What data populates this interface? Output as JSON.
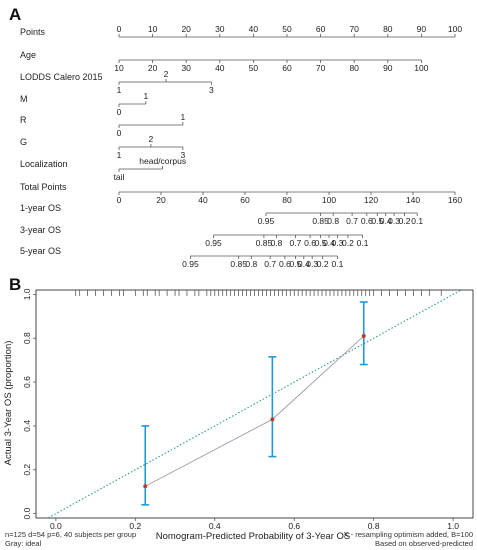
{
  "chart_data": [
    {
      "type": "nomogram",
      "panel_label": "A",
      "rows": [
        {
          "label": "Points",
          "scale_min": 0,
          "scale_max": 100,
          "ticks": [
            {
              "v": 0,
              "t": "0",
              "pos": "above"
            },
            {
              "v": 10,
              "t": "10",
              "pos": "above"
            },
            {
              "v": 20,
              "t": "20",
              "pos": "above"
            },
            {
              "v": 30,
              "t": "30",
              "pos": "above"
            },
            {
              "v": 40,
              "t": "40",
              "pos": "above"
            },
            {
              "v": 50,
              "t": "50",
              "pos": "above"
            },
            {
              "v": 60,
              "t": "60",
              "pos": "above"
            },
            {
              "v": 70,
              "t": "70",
              "pos": "above"
            },
            {
              "v": 80,
              "t": "80",
              "pos": "above"
            },
            {
              "v": 90,
              "t": "90",
              "pos": "above"
            },
            {
              "v": 100,
              "t": "100",
              "pos": "above"
            }
          ]
        },
        {
          "label": "Age",
          "scale_min": 0,
          "scale_max": 100,
          "ticks": [
            {
              "v": 0,
              "t": "10",
              "pos": "below"
            },
            {
              "v": 10,
              "t": "20",
              "pos": "below"
            },
            {
              "v": 20,
              "t": "30",
              "pos": "below"
            },
            {
              "v": 30,
              "t": "40",
              "pos": "below"
            },
            {
              "v": 40,
              "t": "50",
              "pos": "below"
            },
            {
              "v": 50,
              "t": "60",
              "pos": "below"
            },
            {
              "v": 60,
              "t": "70",
              "pos": "below"
            },
            {
              "v": 70,
              "t": "80",
              "pos": "below"
            },
            {
              "v": 80,
              "t": "90",
              "pos": "below"
            },
            {
              "v": 90,
              "t": "100",
              "pos": "below"
            }
          ]
        },
        {
          "label": "LODDS Calero 2015",
          "scale_min": 0,
          "scale_max": 100,
          "ticks": [
            {
              "v": 0,
              "t": "1",
              "pos": "below"
            },
            {
              "v": 14,
              "t": "2",
              "pos": "above"
            },
            {
              "v": 27.5,
              "t": "3",
              "pos": "below"
            }
          ]
        },
        {
          "label": "M",
          "scale_min": 0,
          "scale_max": 100,
          "ticks": [
            {
              "v": 0,
              "t": "0",
              "pos": "below"
            },
            {
              "v": 8,
              "t": "1",
              "pos": "above"
            }
          ]
        },
        {
          "label": "R",
          "scale_min": 0,
          "scale_max": 100,
          "ticks": [
            {
              "v": 0,
              "t": "0",
              "pos": "below"
            },
            {
              "v": 19,
              "t": "1",
              "pos": "above"
            }
          ]
        },
        {
          "label": "G",
          "scale_min": 0,
          "scale_max": 100,
          "ticks": [
            {
              "v": 0,
              "t": "1",
              "pos": "below"
            },
            {
              "v": 9.5,
              "t": "2",
              "pos": "above"
            },
            {
              "v": 19,
              "t": "3",
              "pos": "below"
            }
          ]
        },
        {
          "label": "Localization",
          "scale_min": 0,
          "scale_max": 100,
          "ticks": [
            {
              "v": 0,
              "t": "tail",
              "pos": "below"
            },
            {
              "v": 13,
              "t": "head/corpus",
              "pos": "above"
            }
          ]
        },
        {
          "label": "Total Points",
          "scale_min": 0,
          "scale_max": 160,
          "ticks": [
            {
              "v": 0,
              "t": "0",
              "pos": "below"
            },
            {
              "v": 20,
              "t": "20",
              "pos": "below"
            },
            {
              "v": 40,
              "t": "40",
              "pos": "below"
            },
            {
              "v": 60,
              "t": "60",
              "pos": "below"
            },
            {
              "v": 80,
              "t": "80",
              "pos": "below"
            },
            {
              "v": 100,
              "t": "100",
              "pos": "below"
            },
            {
              "v": 120,
              "t": "120",
              "pos": "below"
            },
            {
              "v": 140,
              "t": "140",
              "pos": "below"
            },
            {
              "v": 160,
              "t": "160",
              "pos": "below"
            }
          ]
        },
        {
          "label": "1-year OS",
          "scale_min": 0,
          "scale_max": 160,
          "ticks": [
            {
              "v": 70,
              "t": "0.95",
              "pos": "below"
            },
            {
              "v": 96,
              "t": "0.85",
              "pos": "below"
            },
            {
              "v": 102,
              "t": "0.8",
              "pos": "below"
            },
            {
              "v": 111,
              "t": "0.7",
              "pos": "below"
            },
            {
              "v": 118,
              "t": "0.6",
              "pos": "below"
            },
            {
              "v": 123,
              "t": "0.5",
              "pos": "below"
            },
            {
              "v": 127,
              "t": "0.4",
              "pos": "below"
            },
            {
              "v": 131,
              "t": "0.3",
              "pos": "below"
            },
            {
              "v": 136,
              "t": "0.2",
              "pos": "below"
            },
            {
              "v": 142,
              "t": "0.1",
              "pos": "below"
            }
          ]
        },
        {
          "label": "3-year OS",
          "scale_min": 0,
          "scale_max": 160,
          "ticks": [
            {
              "v": 45,
              "t": "0.95",
              "pos": "below"
            },
            {
              "v": 69,
              "t": "0.85",
              "pos": "below"
            },
            {
              "v": 75,
              "t": "0.8",
              "pos": "below"
            },
            {
              "v": 84,
              "t": "0.7",
              "pos": "below"
            },
            {
              "v": 91,
              "t": "0.6",
              "pos": "below"
            },
            {
              "v": 96,
              "t": "0.5",
              "pos": "below"
            },
            {
              "v": 100,
              "t": "0.4",
              "pos": "below"
            },
            {
              "v": 104,
              "t": "0.3",
              "pos": "below"
            },
            {
              "v": 109,
              "t": "0.2",
              "pos": "below"
            },
            {
              "v": 116,
              "t": "0.1",
              "pos": "below"
            }
          ]
        },
        {
          "label": "5-year OS",
          "scale_min": 0,
          "scale_max": 160,
          "ticks": [
            {
              "v": 34,
              "t": "0.95",
              "pos": "below"
            },
            {
              "v": 57,
              "t": "0.85",
              "pos": "below"
            },
            {
              "v": 63,
              "t": "0.8",
              "pos": "below"
            },
            {
              "v": 72,
              "t": "0.7",
              "pos": "below"
            },
            {
              "v": 79,
              "t": "0.6",
              "pos": "below"
            },
            {
              "v": 84,
              "t": "0.5",
              "pos": "below"
            },
            {
              "v": 88,
              "t": "0.4",
              "pos": "below"
            },
            {
              "v": 92,
              "t": "0.3",
              "pos": "below"
            },
            {
              "v": 97,
              "t": "0.2",
              "pos": "below"
            },
            {
              "v": 104,
              "t": "0.1",
              "pos": "below"
            }
          ]
        }
      ]
    },
    {
      "type": "scatter",
      "panel_label": "B",
      "xlabel": "Nomogram-Predicted Probability of 3-Year OS",
      "ylabel": "Actual 3-Year OS (proportion)",
      "xlim": [
        -0.05,
        1.05
      ],
      "ylim": [
        -0.02,
        1.02
      ],
      "x_ticks": [
        "0.0",
        "0.2",
        "0.4",
        "0.6",
        "0.8",
        "1.0"
      ],
      "y_ticks": [
        "0.0",
        "0.2",
        "0.4",
        "0.6",
        "0.8",
        "1.0"
      ],
      "points": [
        {
          "x": 0.225,
          "y": 0.125,
          "lo": 0.04,
          "hi": 0.4
        },
        {
          "x": 0.545,
          "y": 0.43,
          "lo": 0.26,
          "hi": 0.715
        },
        {
          "x": 0.775,
          "y": 0.81,
          "lo": 0.68,
          "hi": 0.965
        }
      ],
      "ideal_line": [
        [
          -0.05,
          -0.05
        ],
        [
          1.05,
          1.05
        ]
      ],
      "rug_x": [
        0.05,
        0.06,
        0.08,
        0.1,
        0.12,
        0.14,
        0.16,
        0.17,
        0.2,
        0.22,
        0.23,
        0.25,
        0.26,
        0.28,
        0.3,
        0.31,
        0.33,
        0.35,
        0.36,
        0.38,
        0.39,
        0.4,
        0.41,
        0.42,
        0.43,
        0.44,
        0.45,
        0.46,
        0.47,
        0.48,
        0.49,
        0.5,
        0.51,
        0.52,
        0.53,
        0.54,
        0.55,
        0.56,
        0.57,
        0.58,
        0.59,
        0.6,
        0.61,
        0.62,
        0.63,
        0.64,
        0.65,
        0.66,
        0.67,
        0.68,
        0.69,
        0.7,
        0.71,
        0.72,
        0.73,
        0.74,
        0.75,
        0.76,
        0.77,
        0.78,
        0.79,
        0.8,
        0.82,
        0.84,
        0.86,
        0.88,
        0.9,
        0.92,
        0.94,
        0.97
      ],
      "footnote_left": [
        "n=125 d=54 p=6, 40 subjects per group",
        "Gray: ideal"
      ],
      "footnote_right": [
        "X - resampling optimism added, B=100",
        "Based on observed-predicted"
      ],
      "colors": {
        "ideal": "#2a9d8f",
        "errorbar": "#1e9bd7",
        "point": "#c0392b",
        "line": "#9a9aa8"
      }
    }
  ]
}
